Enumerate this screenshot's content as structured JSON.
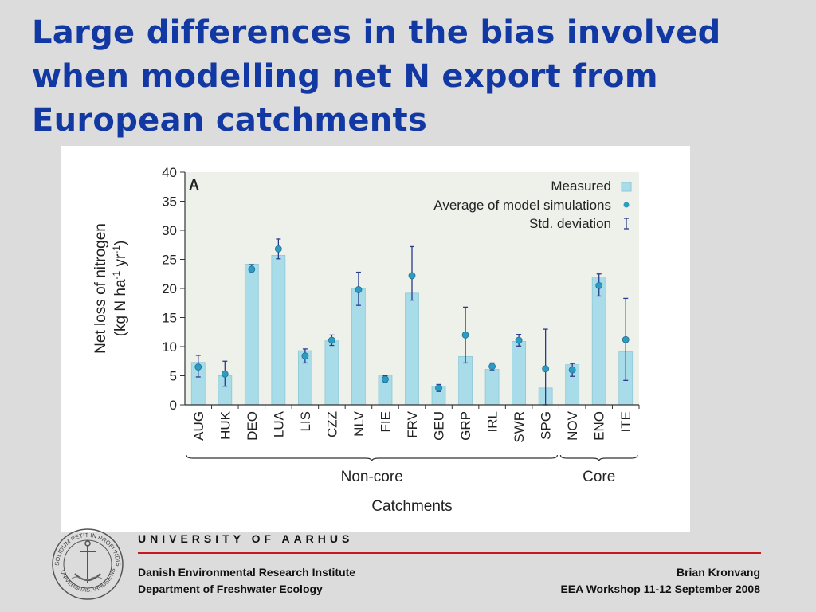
{
  "slide": {
    "title": "Large differences in the bias involved when modelling net N export from European catchments"
  },
  "chart_data": {
    "type": "bar",
    "panel_label": "A",
    "categories": [
      "AUG",
      "HUK",
      "DEO",
      "LUA",
      "LIS",
      "CZZ",
      "NLV",
      "FIE",
      "FRV",
      "GEU",
      "GRP",
      "IRL",
      "SWR",
      "SPG",
      "NOV",
      "ENO",
      "ITE"
    ],
    "series": [
      {
        "name": "Measured",
        "kind": "bar",
        "color": "#a8dce8",
        "values": [
          7.3,
          5.0,
          24.2,
          25.7,
          9.3,
          11.0,
          20.0,
          5.1,
          19.2,
          3.2,
          8.3,
          6.1,
          10.9,
          2.9,
          6.9,
          22.0,
          9.1
        ]
      },
      {
        "name": "Average of model simulations",
        "kind": "point",
        "color": "#2b9cc3",
        "values": [
          6.5,
          5.3,
          23.3,
          26.8,
          8.4,
          11.1,
          19.8,
          4.4,
          22.2,
          2.9,
          12.0,
          6.6,
          11.1,
          6.2,
          6.0,
          20.5,
          11.2
        ]
      },
      {
        "name": "Std. deviation",
        "kind": "errorbar",
        "color": "#2a3b8f",
        "low": [
          4.8,
          3.2,
          22.9,
          25.1,
          7.2,
          10.2,
          17.1,
          3.8,
          18.0,
          2.3,
          7.2,
          5.9,
          10.1,
          0.0,
          4.9,
          18.7,
          4.2
        ],
        "high": [
          8.5,
          7.5,
          24.1,
          28.5,
          9.6,
          12.0,
          22.8,
          5.0,
          27.2,
          3.5,
          16.8,
          7.2,
          12.1,
          13.0,
          7.1,
          22.5,
          18.3
        ]
      }
    ],
    "ylim": [
      0,
      40
    ],
    "yticks": [
      0,
      5,
      10,
      15,
      20,
      25,
      30,
      35,
      40
    ],
    "ylabel_line1": "Net loss of nitrogen",
    "ylabel_unit_prefix": "(kg N ha",
    "ylabel_sup1": "-1",
    "ylabel_unit_mid": " yr",
    "ylabel_sup2": "-1",
    "ylabel_unit_suffix": ")",
    "xlabel": "Catchments",
    "groups": [
      {
        "label": "Non-core",
        "from": 0,
        "to": 13
      },
      {
        "label": "Core",
        "from": 14,
        "to": 16
      }
    ],
    "legend_position": "top-right",
    "grid": false,
    "plot_background": "#eef1ea"
  },
  "footer": {
    "university": "UNIVERSITY OF AARHUS",
    "institute": "Danish Environmental Research Institute",
    "department": "Department of Freshwater Ecology",
    "author": "Brian Kronvang",
    "event": "EEA Workshop 11-12 September 2008",
    "seal_text_top": "SOLIDUM PETIT IN PROFUNDIS",
    "seal_text_bottom": "UNIVERSITAS ARHUSIENSIS",
    "accent_color": "#c8171e"
  }
}
